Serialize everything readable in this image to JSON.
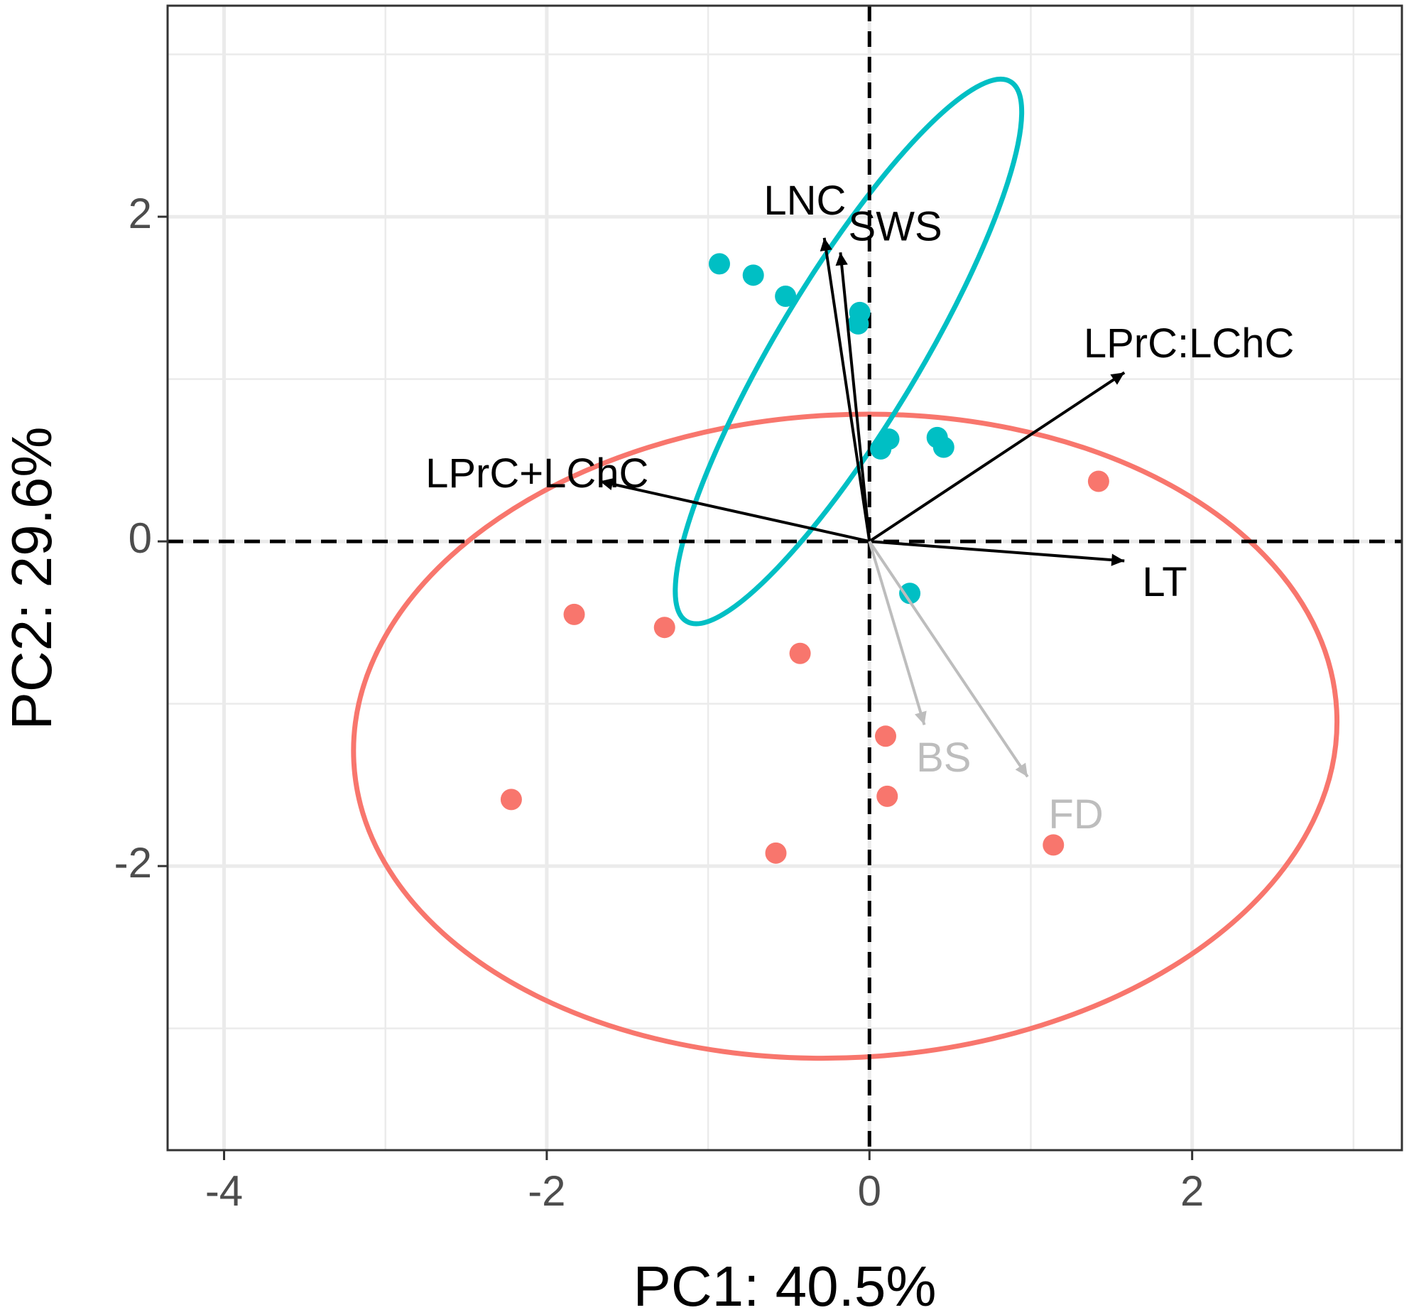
{
  "chart_data": {
    "type": "scatter",
    "title": "",
    "xlabel": "PC1: 40.5%",
    "ylabel": "PC2: 29.6%",
    "xlim": [
      -4.35,
      3.3
    ],
    "ylim": [
      -3.75,
      3.3
    ],
    "x_ticks": [
      -4,
      -2,
      0,
      2
    ],
    "x_tick_labels": [
      "-4",
      "-2",
      "0",
      "2"
    ],
    "y_ticks": [
      -2,
      0,
      2
    ],
    "y_tick_labels": [
      "-2",
      "0",
      "2"
    ],
    "grid": true,
    "reference_lines": {
      "x": 0,
      "y": 0,
      "style": "dashed"
    },
    "legend": "none",
    "series": [
      {
        "color": "#F8766D",
        "points": [
          {
            "x": -1.83,
            "y": -0.45
          },
          {
            "x": -1.27,
            "y": -0.53
          },
          {
            "x": -0.43,
            "y": -0.69
          },
          {
            "x": 0.1,
            "y": -1.2
          },
          {
            "x": 0.11,
            "y": -1.57
          },
          {
            "x": -2.22,
            "y": -1.59
          },
          {
            "x": -0.58,
            "y": -1.92
          },
          {
            "x": 1.14,
            "y": -1.87
          },
          {
            "x": 1.42,
            "y": 0.37
          }
        ],
        "ellipse": {
          "cx": -0.15,
          "cy": -1.2,
          "rx": 3.05,
          "ry": 1.98,
          "angle": -3
        }
      },
      {
        "color": "#00BFC4",
        "points": [
          {
            "x": -0.93,
            "y": 1.71
          },
          {
            "x": -0.72,
            "y": 1.64
          },
          {
            "x": -0.52,
            "y": 1.51
          },
          {
            "x": -0.07,
            "y": 1.34
          },
          {
            "x": -0.06,
            "y": 1.41
          },
          {
            "x": 0.07,
            "y": 0.57
          },
          {
            "x": 0.12,
            "y": 0.63
          },
          {
            "x": 0.42,
            "y": 0.64
          },
          {
            "x": 0.46,
            "y": 0.58
          },
          {
            "x": 0.25,
            "y": -0.32
          }
        ],
        "ellipse": {
          "cx": -0.13,
          "cy": 1.17,
          "rx": 1.95,
          "ry": 0.44,
          "angle": -59
        }
      }
    ],
    "vectors": [
      {
        "name": "LNC",
        "x": -0.28,
        "y": 1.87,
        "color": "#000000",
        "label_x": -0.4,
        "label_y": 2.08
      },
      {
        "name": "SWS",
        "x": -0.18,
        "y": 1.78,
        "color": "#000000",
        "label_x": 0.16,
        "label_y": 1.92
      },
      {
        "name": "LPrC:LChC",
        "x": 1.58,
        "y": 1.04,
        "color": "#000000",
        "label_x": 1.98,
        "label_y": 1.2
      },
      {
        "name": "LPrC+LChC",
        "x": -1.67,
        "y": 0.37,
        "color": "#000000",
        "label_x": -2.06,
        "label_y": 0.4
      },
      {
        "name": "LT",
        "x": 1.58,
        "y": -0.12,
        "color": "#000000",
        "label_x": 1.83,
        "label_y": -0.27
      },
      {
        "name": "BS",
        "x": 0.34,
        "y": -1.13,
        "color": "#bdbdbd",
        "label_x": 0.46,
        "label_y": -1.35
      },
      {
        "name": "FD",
        "x": 0.98,
        "y": -1.45,
        "color": "#bdbdbd",
        "label_x": 1.28,
        "label_y": -1.7
      }
    ]
  }
}
